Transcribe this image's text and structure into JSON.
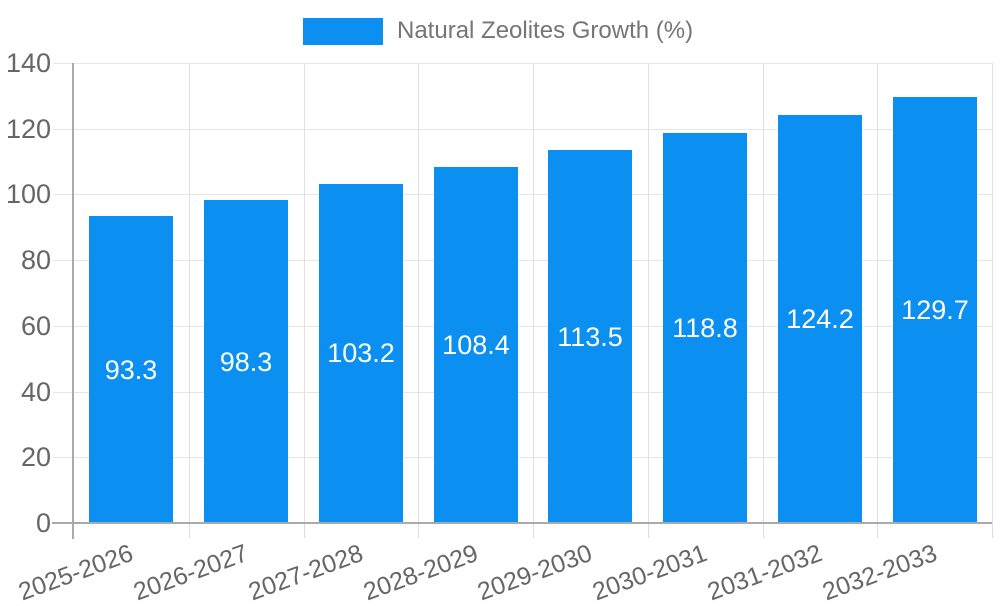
{
  "legend": {
    "label": "Natural Zeolites Growth (%)"
  },
  "chart_data": {
    "type": "bar",
    "title": "",
    "xlabel": "",
    "ylabel": "",
    "categories": [
      "2025-2026",
      "2026-2027",
      "2027-2028",
      "2028-2029",
      "2029-2030",
      "2030-2031",
      "2031-2032",
      "2032-2033"
    ],
    "series": [
      {
        "name": "Natural Zeolites Growth (%)",
        "values": [
          93.3,
          98.3,
          103.2,
          108.4,
          113.5,
          118.8,
          124.2,
          129.7
        ]
      }
    ],
    "value_labels": [
      "93.3",
      "98.3",
      "103.2",
      "108.4",
      "113.5",
      "118.8",
      "124.2",
      "129.7"
    ],
    "ylim": [
      0,
      140
    ],
    "yticks": [
      0,
      20,
      40,
      60,
      80,
      100,
      120,
      140
    ],
    "grid": true,
    "legend_position": "top-center",
    "value_label_position": "inside-center"
  },
  "colors": {
    "bar": "#0B90F2",
    "axis": "#aaaaaa",
    "grid_h": "#e6e6e6",
    "grid_v": "#e0e0e0",
    "tick": "#dddddd",
    "axis_text": "#666666",
    "legend_text": "#757575",
    "value_text": "#ffffff"
  }
}
